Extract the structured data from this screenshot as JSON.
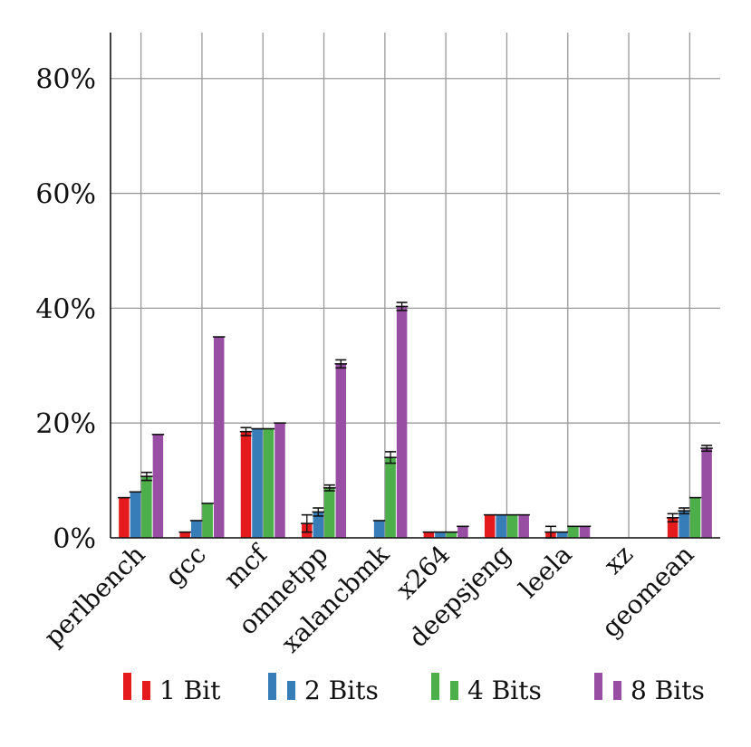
{
  "chart_data": {
    "type": "bar",
    "categories": [
      "perlbench",
      "gcc",
      "mcf",
      "omnetpp",
      "xalancbmk",
      "x264",
      "deepsjeng",
      "leela",
      "xz",
      "geomean"
    ],
    "series": [
      {
        "name": "1 Bit",
        "color": "#e41a1c",
        "values": [
          7,
          1,
          18.5,
          2.5,
          0,
          1,
          4,
          1,
          0,
          3.5
        ],
        "errors": [
          0,
          0,
          0.7,
          1.5,
          0,
          0,
          0,
          1,
          0,
          0.7
        ]
      },
      {
        "name": "2 Bits",
        "color": "#377eb8",
        "values": [
          8,
          3,
          19,
          4.5,
          3,
          1,
          4,
          1,
          0,
          4.7
        ],
        "errors": [
          0,
          0,
          0,
          0.7,
          0,
          0,
          0,
          0,
          0,
          0.5
        ]
      },
      {
        "name": "4 Bits",
        "color": "#4daf4a",
        "values": [
          10.7,
          6,
          19,
          8.7,
          14,
          1,
          4,
          2,
          0,
          7
        ],
        "errors": [
          0.7,
          0,
          0,
          0.5,
          1,
          0,
          0,
          0,
          0,
          0
        ]
      },
      {
        "name": "8 Bits",
        "color": "#984ea3",
        "values": [
          18,
          35,
          20,
          30.3,
          40.3,
          2,
          4,
          2,
          0,
          15.6
        ],
        "errors": [
          0,
          0,
          0,
          0.7,
          0.7,
          0,
          0,
          0,
          0,
          0.5
        ]
      }
    ],
    "y_ticks": [
      0,
      20,
      40,
      60,
      80
    ],
    "y_tick_labels": [
      "0%",
      "20%",
      "40%",
      "60%",
      "80%"
    ],
    "ylim": [
      0,
      88
    ],
    "grid": true,
    "legend_position": "bottom"
  }
}
